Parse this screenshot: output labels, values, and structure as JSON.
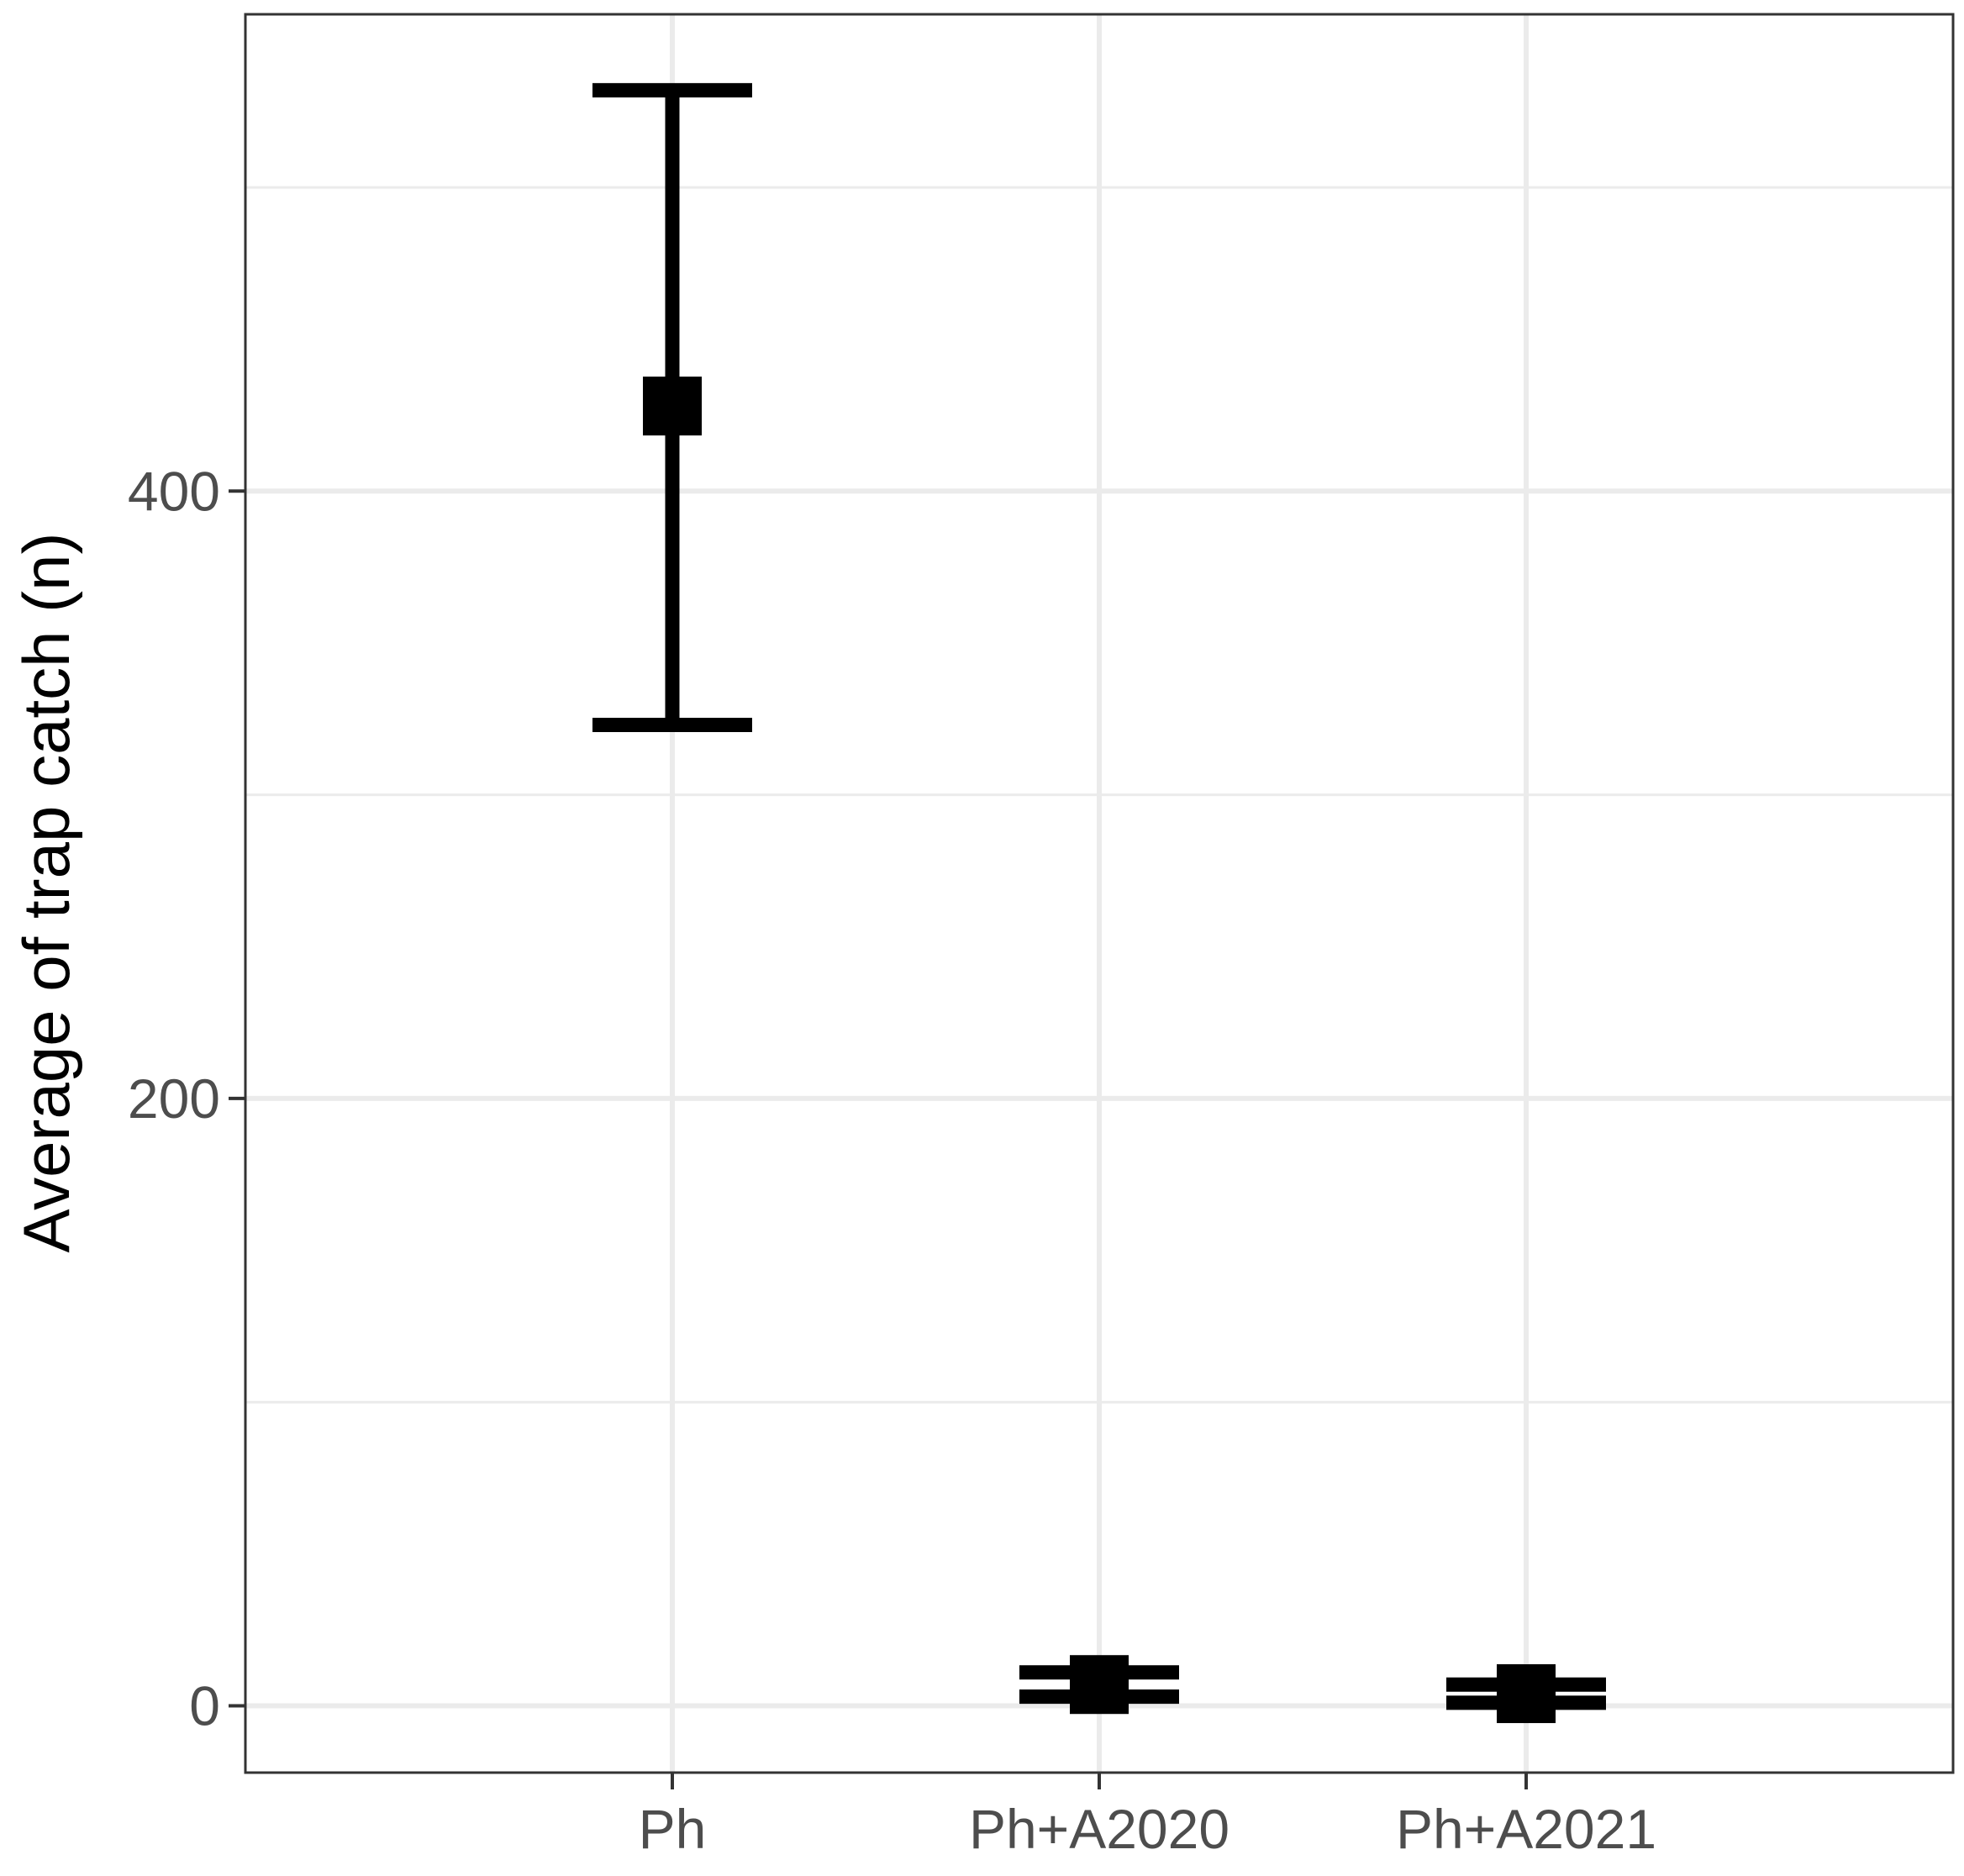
{
  "chart_data": {
    "type": "scatter",
    "title": "",
    "xlabel": "",
    "ylabel": "Average of trap catch (n)",
    "categories": [
      "Ph",
      "Ph+A2020",
      "Ph+A2021"
    ],
    "values": [
      428,
      7,
      4
    ],
    "error_lower": [
      323,
      3,
      1
    ],
    "error_upper": [
      532,
      11,
      7
    ],
    "ylim": [
      -22,
      557
    ],
    "y_ticks": [
      0,
      200,
      400
    ],
    "y_tick_labels": [
      "0",
      "200",
      "400"
    ],
    "grid": true,
    "legend": "none",
    "colors": {
      "marks": "#000000",
      "grid": "#ebebeb",
      "panel_border": "#333333",
      "tick_text": "#4d4d4d"
    }
  }
}
